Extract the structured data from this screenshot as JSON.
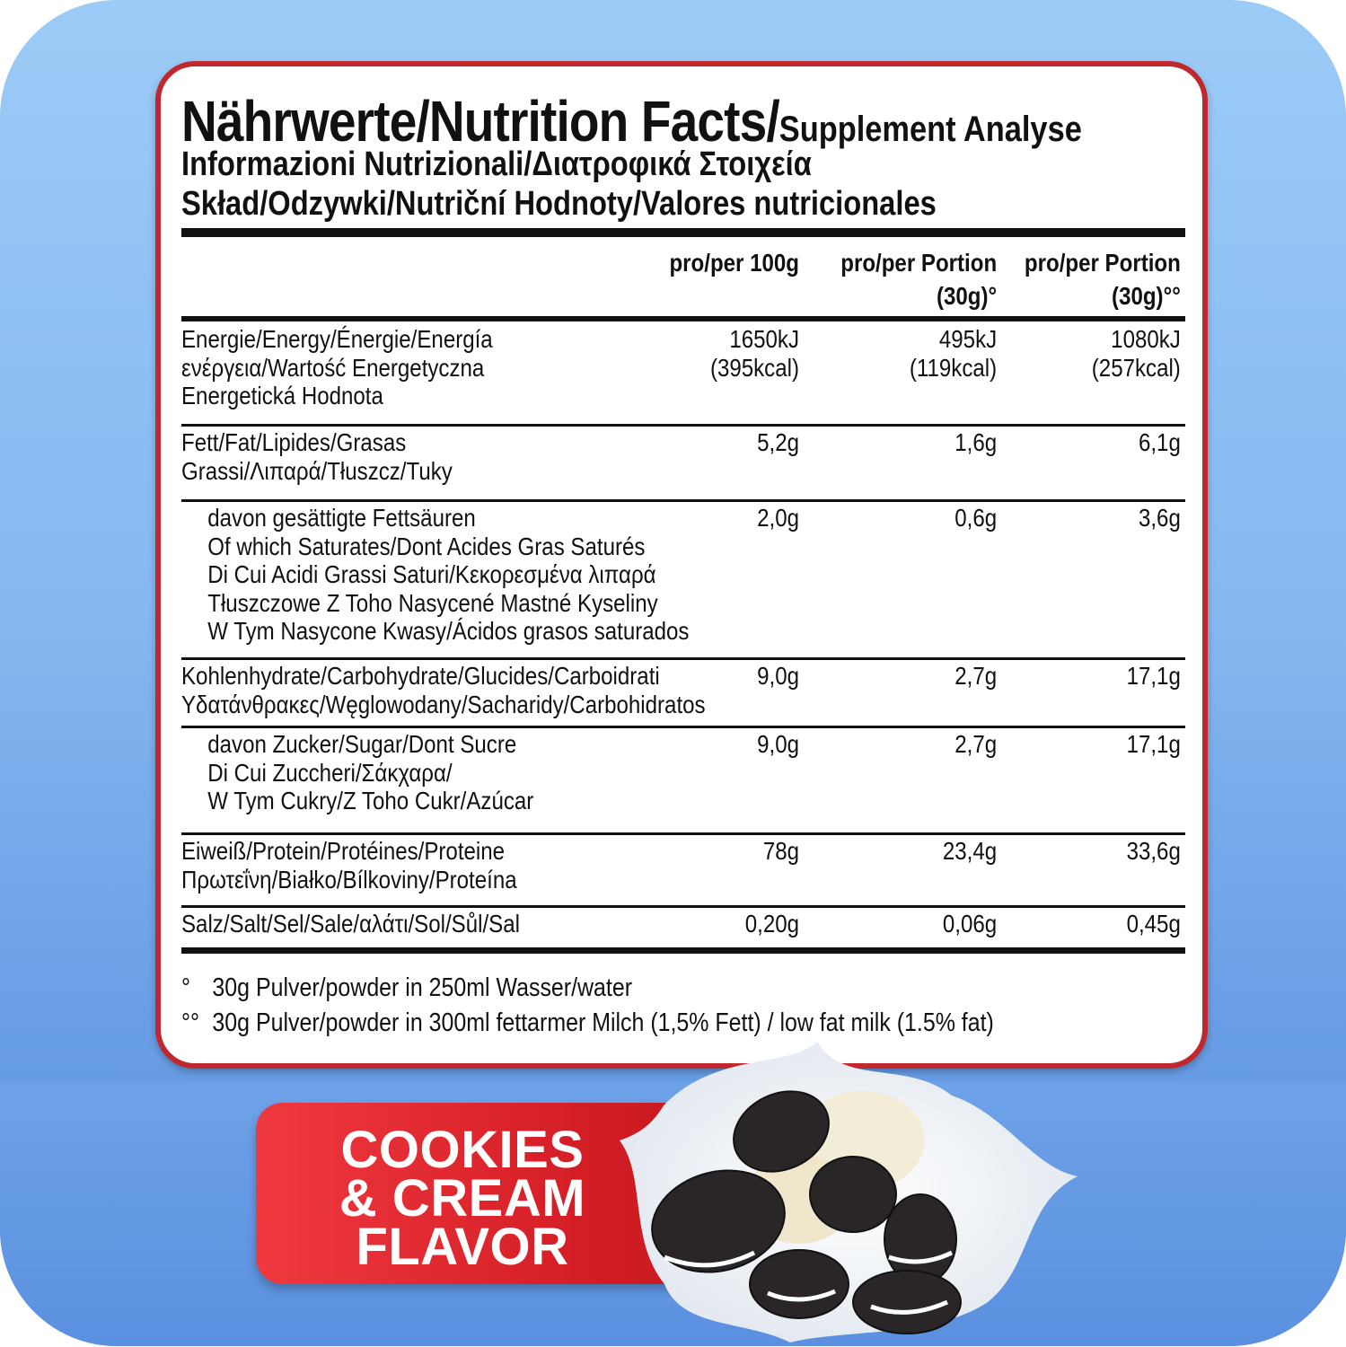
{
  "title": {
    "line1_main": "Nährwerte/Nutrition Facts/",
    "line1_small": "Supplement Analyse",
    "line2": "Informazioni Nutrizionali/Διατροφικά Στοιχεία",
    "line3": "Skład/Odzywki/Nutriční Hodnoty/Valores nutricionales"
  },
  "columns": [
    {
      "line1": "pro/per 100g",
      "line2": ""
    },
    {
      "line1": "pro/per Portion",
      "line2": "(30g)°"
    },
    {
      "line1": "pro/per Portion",
      "line2": "(30g)°°"
    }
  ],
  "rows": [
    {
      "label": [
        "Energie/Energy/Énergie/Energía",
        "ενέργεια/Wartość Energetyczna",
        "Energetická Hodnota"
      ],
      "indent": false,
      "values": [
        [
          "1650kJ",
          "(395kcal)"
        ],
        [
          "495kJ",
          "(119kcal)"
        ],
        [
          "1080kJ",
          "(257kcal)"
        ]
      ]
    },
    {
      "label": [
        "Fett/Fat/Lipides/Grasas",
        "Grassi/Λιπαρά/Tłuszcz/Tuky"
      ],
      "indent": false,
      "values": [
        [
          "5,2g"
        ],
        [
          "1,6g"
        ],
        [
          "6,1g"
        ]
      ]
    },
    {
      "label": [
        "davon gesättigte Fettsäuren",
        "Of which Saturates/Dont Acides Gras Saturés",
        "Di Cui Acidi Grassi Saturi/Κεκορεσμένα λιπαρά",
        "Tłuszczowe Z Toho Nasycené Mastné Kyseliny",
        "W Tym Nasycone Kwasy/Ácidos grasos saturados"
      ],
      "indent": true,
      "values": [
        [
          "2,0g"
        ],
        [
          "0,6g"
        ],
        [
          "3,6g"
        ]
      ]
    },
    {
      "label": [
        "Kohlenhydrate/Carbohydrate/Glucides/Carboidrati",
        "Υδατάνθρακες/Węglowodany/Sacharidy/Carbohidratos"
      ],
      "indent": false,
      "values": [
        [
          "9,0g"
        ],
        [
          "2,7g"
        ],
        [
          "17,1g"
        ]
      ]
    },
    {
      "label": [
        "davon Zucker/Sugar/Dont Sucre",
        "Di Cui Zuccheri/Σάκχαρα/",
        "W Tym Cukry/Z Toho Cukr/Azúcar"
      ],
      "indent": true,
      "values": [
        [
          "9,0g"
        ],
        [
          "2,7g"
        ],
        [
          "17,1g"
        ]
      ]
    },
    {
      "label": [
        "Eiweiß/Protein/Protéines/Proteine",
        "Πρωτεΐνη/Białko/Bílkoviny/Proteína"
      ],
      "indent": false,
      "values": [
        [
          "78g"
        ],
        [
          "23,4g"
        ],
        [
          "33,6g"
        ]
      ]
    },
    {
      "label": [
        "Salz/Salt/Sel/Sale/αλάτι/Sol/Sůl/Sal"
      ],
      "indent": false,
      "values": [
        [
          "0,20g"
        ],
        [
          "0,06g"
        ],
        [
          "0,45g"
        ]
      ]
    }
  ],
  "footnotes": [
    {
      "mark": "°",
      "text": "30g Pulver/powder in 250ml Wasser/water"
    },
    {
      "mark": "°°",
      "text": "30g Pulver/powder in 300ml fettarmer Milch (1,5% Fett)  /  low fat milk (1.5% fat)"
    }
  ],
  "banner": {
    "lines": [
      "COOKIES",
      "& CREAM",
      "FLAVOR"
    ]
  },
  "colors": {
    "border_red": "#c0282d",
    "banner_red": "#d61f27",
    "background_blue": "#86b8f0"
  },
  "icons": {
    "product_art": "cookies-milk-splash-image"
  }
}
